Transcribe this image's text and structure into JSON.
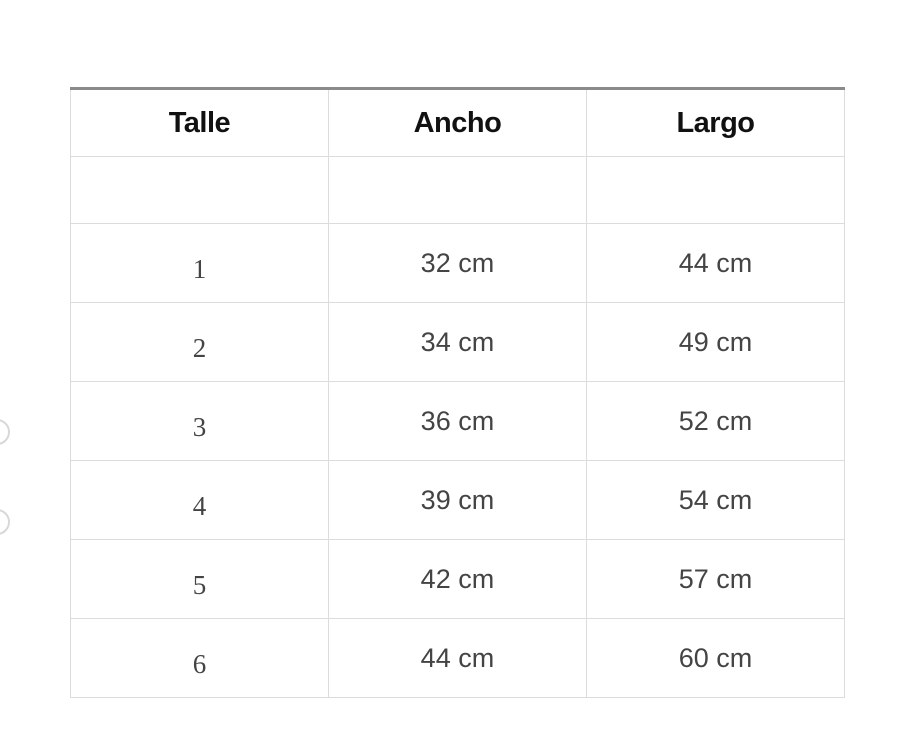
{
  "table": {
    "headers": [
      "Talle",
      "Ancho",
      "Largo"
    ],
    "rows": [
      {
        "talle": "1",
        "ancho": "32 cm",
        "largo": "44 cm"
      },
      {
        "talle": "2",
        "ancho": "34 cm",
        "largo": "49 cm"
      },
      {
        "talle": "3",
        "ancho": "36 cm",
        "largo": "52 cm"
      },
      {
        "talle": "4",
        "ancho": "39 cm",
        "largo": "54 cm"
      },
      {
        "talle": "5",
        "ancho": "42 cm",
        "largo": "57 cm"
      },
      {
        "talle": "6",
        "ancho": "44 cm",
        "largo": "60 cm"
      }
    ]
  }
}
